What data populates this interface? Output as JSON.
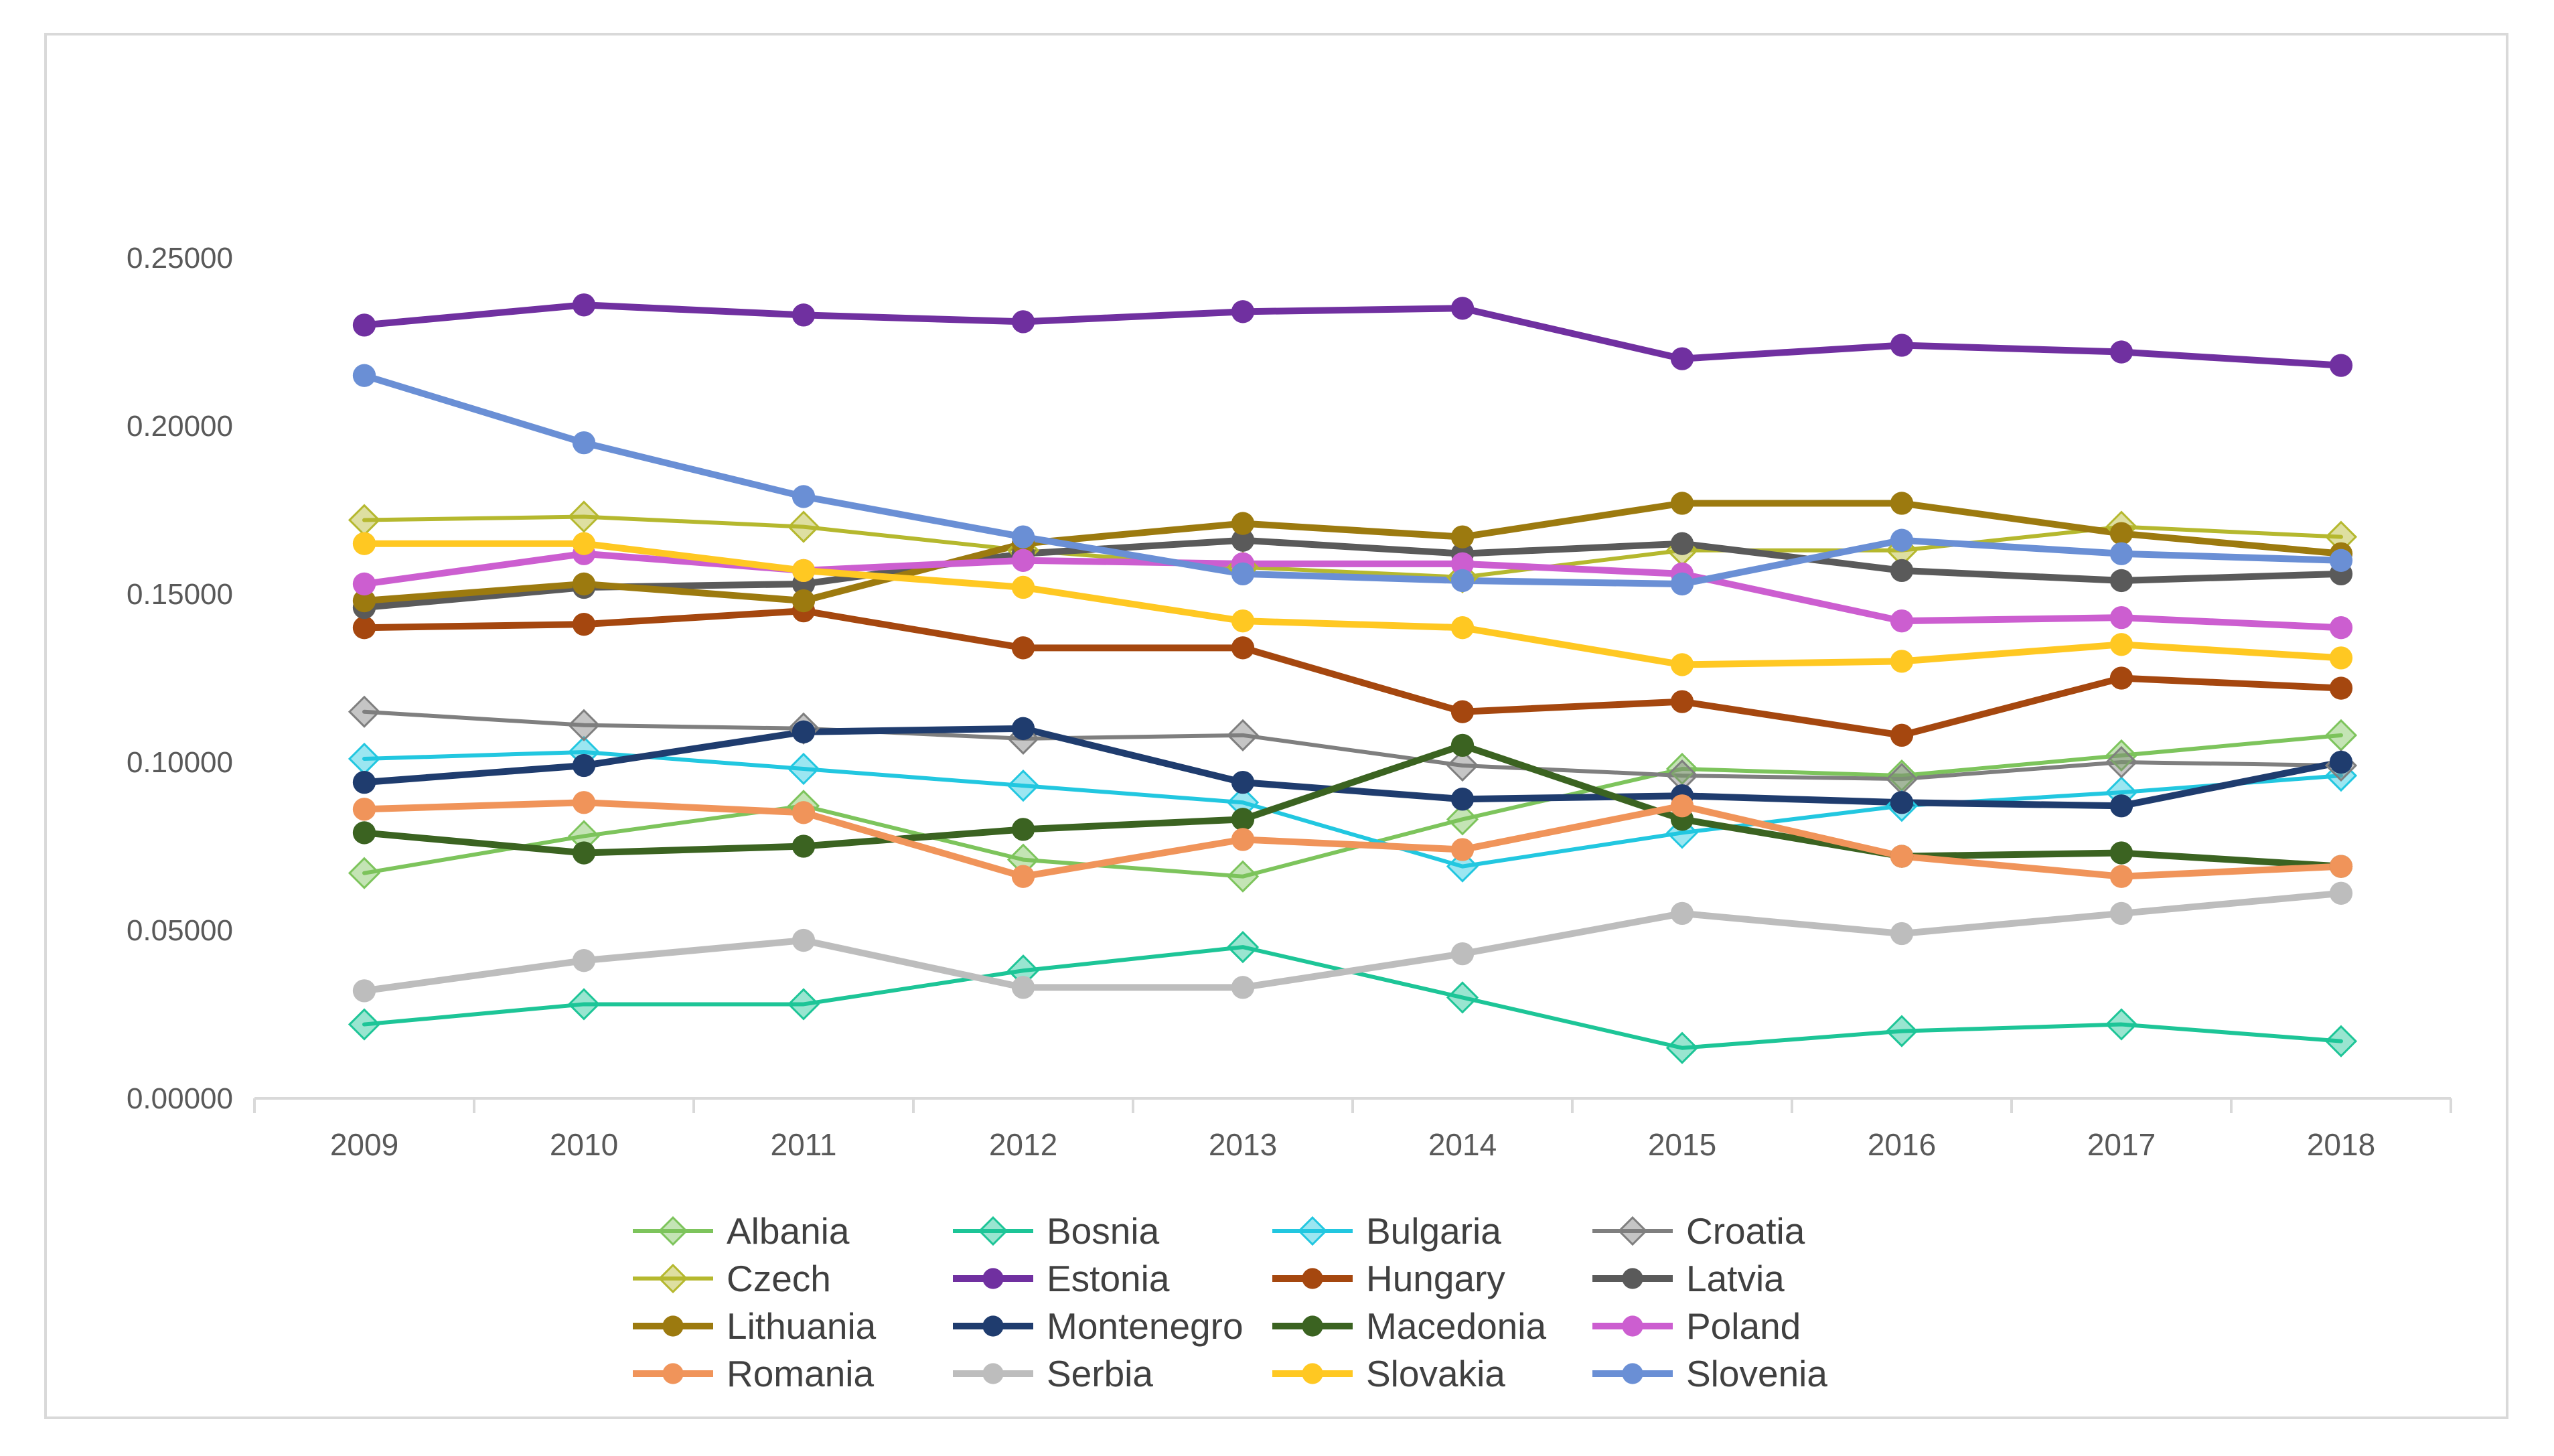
{
  "chart_data": {
    "type": "line",
    "title": "",
    "xlabel": "",
    "ylabel": "",
    "x": [
      "2009",
      "2010",
      "2011",
      "2012",
      "2013",
      "2014",
      "2015",
      "2016",
      "2017",
      "2018"
    ],
    "y_ticks": [
      "0.00000",
      "0.05000",
      "0.10000",
      "0.15000",
      "0.20000",
      "0.25000"
    ],
    "ylim": [
      0,
      0.25
    ],
    "grid": false,
    "legend_position": "bottom",
    "series": [
      {
        "name": "Albania",
        "color": "#7DC45C",
        "marker": "diamond",
        "values": [
          0.067,
          0.078,
          0.087,
          0.071,
          0.066,
          0.083,
          0.098,
          0.096,
          0.102,
          0.108
        ]
      },
      {
        "name": "Bosnia",
        "color": "#1DC597",
        "marker": "diamond",
        "values": [
          0.022,
          0.028,
          0.028,
          0.038,
          0.045,
          0.03,
          0.015,
          0.02,
          0.022,
          0.017
        ]
      },
      {
        "name": "Bulgaria",
        "color": "#22C7E0",
        "marker": "diamond",
        "values": [
          0.101,
          0.103,
          0.098,
          0.093,
          0.088,
          0.069,
          0.079,
          0.087,
          0.091,
          0.096
        ]
      },
      {
        "name": "Croatia",
        "color": "#7F7F7F",
        "marker": "diamond",
        "values": [
          0.115,
          0.111,
          0.11,
          0.107,
          0.108,
          0.099,
          0.096,
          0.095,
          0.1,
          0.099
        ]
      },
      {
        "name": "Czech",
        "color": "#B5B82E",
        "marker": "diamond",
        "values": [
          0.172,
          0.173,
          0.17,
          0.163,
          0.158,
          0.155,
          0.163,
          0.163,
          0.17,
          0.167
        ]
      },
      {
        "name": "Estonia",
        "color": "#7030A0",
        "marker": "circle",
        "values": [
          0.23,
          0.236,
          0.233,
          0.231,
          0.234,
          0.235,
          0.22,
          0.224,
          0.222,
          0.218
        ]
      },
      {
        "name": "Hungary",
        "color": "#A5470F",
        "marker": "circle",
        "values": [
          0.14,
          0.141,
          0.145,
          0.134,
          0.134,
          0.115,
          0.118,
          0.108,
          0.125,
          0.122
        ]
      },
      {
        "name": "Latvia",
        "color": "#5A5A5A",
        "marker": "circle",
        "values": [
          0.146,
          0.152,
          0.153,
          0.162,
          0.166,
          0.162,
          0.165,
          0.157,
          0.154,
          0.156
        ]
      },
      {
        "name": "Lithuania",
        "color": "#9C7A0F",
        "marker": "circle",
        "values": [
          0.148,
          0.153,
          0.148,
          0.165,
          0.171,
          0.167,
          0.177,
          0.177,
          0.168,
          0.162
        ]
      },
      {
        "name": "Montenegro",
        "color": "#1F3C6E",
        "marker": "circle",
        "values": [
          0.094,
          0.099,
          0.109,
          0.11,
          0.094,
          0.089,
          0.09,
          0.088,
          0.087,
          0.1
        ]
      },
      {
        "name": "Macedonia",
        "color": "#3B6321",
        "marker": "circle",
        "values": [
          0.079,
          0.073,
          0.075,
          0.08,
          0.083,
          0.105,
          0.083,
          0.072,
          0.073,
          0.069
        ]
      },
      {
        "name": "Poland",
        "color": "#CC5ED0",
        "marker": "circle",
        "values": [
          0.153,
          0.162,
          0.157,
          0.16,
          0.159,
          0.159,
          0.156,
          0.142,
          0.143,
          0.14
        ]
      },
      {
        "name": "Romania",
        "color": "#F0945A",
        "marker": "circle",
        "values": [
          0.086,
          0.088,
          0.085,
          0.066,
          0.077,
          0.074,
          0.087,
          0.072,
          0.066,
          0.069
        ]
      },
      {
        "name": "Serbia",
        "color": "#BDBDBD",
        "marker": "circle",
        "values": [
          0.032,
          0.041,
          0.047,
          0.033,
          0.033,
          0.043,
          0.055,
          0.049,
          0.055,
          0.061
        ]
      },
      {
        "name": "Slovakia",
        "color": "#FFC822",
        "marker": "circle",
        "values": [
          0.165,
          0.165,
          0.157,
          0.152,
          0.142,
          0.14,
          0.129,
          0.13,
          0.135,
          0.131
        ]
      },
      {
        "name": "Slovenia",
        "color": "#6A8FD5",
        "marker": "circle",
        "values": [
          0.215,
          0.195,
          0.179,
          0.167,
          0.156,
          0.154,
          0.153,
          0.166,
          0.162,
          0.16
        ]
      }
    ]
  }
}
